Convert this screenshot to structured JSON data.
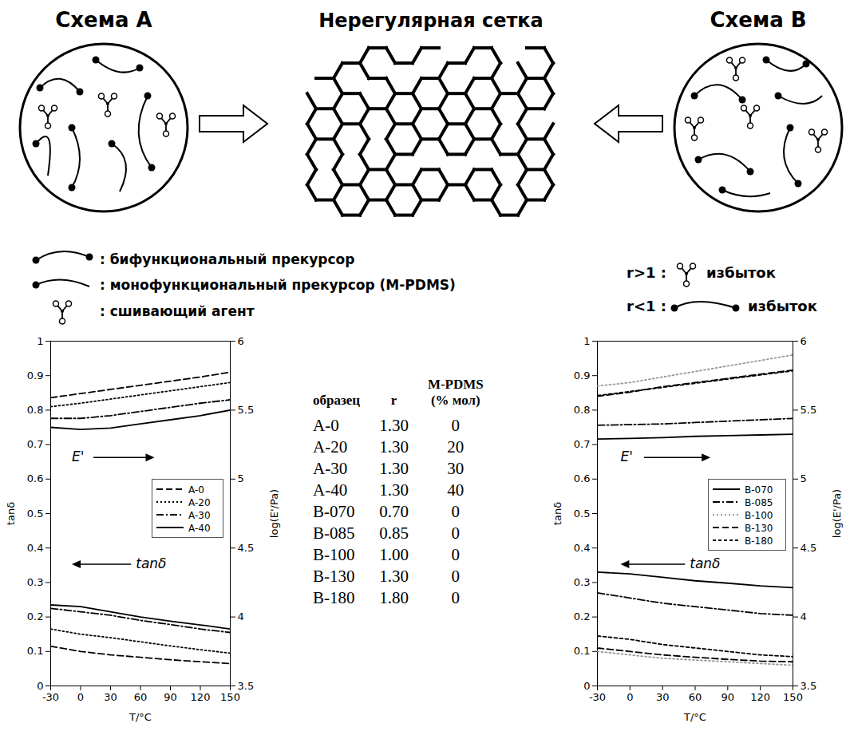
{
  "header": {
    "scheme_a": "Схема A",
    "network": "Нерегулярная сетка",
    "scheme_b": "Схема B"
  },
  "schematic_legend": {
    "bifunctional": ": бифункциональный прекурсор",
    "monofunctional": ": монофункциональный прекурсор (M-PDMS)",
    "crosslinker": ": сшивающий агент"
  },
  "ratio_notes": {
    "excess_crosslinker": {
      "condition": "r>1 :",
      "text": "избыток"
    },
    "excess_bifunctional": {
      "condition": "r<1 :",
      "text": "избыток"
    }
  },
  "table": {
    "columns": [
      "образец",
      "r",
      "M-PDMS (% мол)"
    ],
    "rows": [
      [
        "A-0",
        "1.30",
        "0"
      ],
      [
        "A-20",
        "1.30",
        "20"
      ],
      [
        "A-30",
        "1.30",
        "30"
      ],
      [
        "A-40",
        "1.30",
        "40"
      ],
      [
        "B-070",
        "0.70",
        "0"
      ],
      [
        "B-085",
        "0.85",
        "0"
      ],
      [
        "B-100",
        "1.00",
        "0"
      ],
      [
        "B-130",
        "1.30",
        "0"
      ],
      [
        "B-180",
        "1.80",
        "0"
      ]
    ]
  },
  "chart_data": [
    {
      "type": "line",
      "x_label": "T/°C",
      "y_label": "tanδ",
      "y2_label": "log(E'/Pa)",
      "x": [
        -30,
        0,
        30,
        60,
        90,
        120,
        150
      ],
      "xlim": [
        -30,
        150
      ],
      "xticks": [
        -30,
        0,
        30,
        60,
        90,
        120,
        150
      ],
      "ylim": [
        0,
        1
      ],
      "yticks": [
        0,
        0.1,
        0.2,
        0.3,
        0.4,
        0.5,
        0.6,
        0.7,
        0.8,
        0.9,
        1
      ],
      "y2lim": [
        3.5,
        6
      ],
      "y2ticks": [
        3.5,
        4,
        4.5,
        5,
        5.5,
        6
      ],
      "legend": "right",
      "annotations": [
        {
          "text": "E'",
          "axis": "y2"
        },
        {
          "text": "tanδ",
          "axis": "y"
        }
      ],
      "series": [
        {
          "name": "A-0",
          "color": "#000000",
          "line_style": "dashed",
          "values": [
            0.115,
            0.1,
            0.09,
            0.083,
            0.076,
            0.07,
            0.065
          ]
        },
        {
          "name": "A-20",
          "color": "#000000",
          "line_style": "dotted",
          "values": [
            0.165,
            0.15,
            0.14,
            0.128,
            0.116,
            0.105,
            0.095
          ]
        },
        {
          "name": "A-30",
          "color": "#000000",
          "line_style": "dashdot",
          "values": [
            0.225,
            0.215,
            0.205,
            0.19,
            0.178,
            0.165,
            0.155
          ]
        },
        {
          "name": "A-40",
          "color": "#000000",
          "line_style": "solid",
          "values": [
            0.235,
            0.23,
            0.215,
            0.2,
            0.188,
            0.177,
            0.165
          ]
        },
        {
          "name": "A-0",
          "color": "#000000",
          "line_style": "dashed",
          "axis": "y2",
          "values": [
            5.59,
            5.62,
            5.65,
            5.68,
            5.71,
            5.74,
            5.775
          ]
        },
        {
          "name": "A-20",
          "color": "#000000",
          "line_style": "dotted",
          "axis": "y2",
          "values": [
            5.525,
            5.55,
            5.58,
            5.61,
            5.64,
            5.67,
            5.7
          ]
        },
        {
          "name": "A-30",
          "color": "#000000",
          "line_style": "dashdot",
          "axis": "y2",
          "values": [
            5.44,
            5.44,
            5.46,
            5.49,
            5.52,
            5.55,
            5.575
          ]
        },
        {
          "name": "A-40",
          "color": "#000000",
          "line_style": "solid",
          "axis": "y2",
          "values": [
            5.375,
            5.36,
            5.37,
            5.4,
            5.43,
            5.46,
            5.5
          ]
        }
      ]
    },
    {
      "type": "line",
      "x_label": "T/°C",
      "y_label": "tanδ",
      "y2_label": "log(E'/Pa)",
      "x": [
        -30,
        0,
        30,
        60,
        90,
        120,
        150
      ],
      "xlim": [
        -30,
        150
      ],
      "xticks": [
        -30,
        0,
        30,
        60,
        90,
        120,
        150
      ],
      "ylim": [
        0,
        1
      ],
      "yticks": [
        0,
        0.1,
        0.2,
        0.3,
        0.4,
        0.5,
        0.6,
        0.7,
        0.8,
        0.9,
        1
      ],
      "y2lim": [
        3.5,
        6
      ],
      "y2ticks": [
        3.5,
        4,
        4.5,
        5,
        5.5,
        6
      ],
      "legend": "right",
      "annotations": [
        {
          "text": "E'",
          "axis": "y2"
        },
        {
          "text": "tanδ",
          "axis": "y"
        }
      ],
      "series": [
        {
          "name": "B-070",
          "color": "#000000",
          "line_style": "solid",
          "values": [
            0.33,
            0.325,
            0.315,
            0.305,
            0.298,
            0.29,
            0.285
          ]
        },
        {
          "name": "B-085",
          "color": "#000000",
          "line_style": "dashdot",
          "values": [
            0.27,
            0.255,
            0.24,
            0.23,
            0.22,
            0.21,
            0.205
          ]
        },
        {
          "name": "B-100",
          "color": "#999999",
          "line_style": "dotted",
          "values": [
            0.1,
            0.09,
            0.08,
            0.075,
            0.07,
            0.065,
            0.06
          ]
        },
        {
          "name": "B-130",
          "color": "#000000",
          "line_style": "dashed",
          "values": [
            0.11,
            0.1,
            0.09,
            0.083,
            0.077,
            0.072,
            0.07
          ]
        },
        {
          "name": "B-180",
          "color": "#000000",
          "line_style": "short_dashed",
          "values": [
            0.145,
            0.135,
            0.12,
            0.11,
            0.1,
            0.09,
            0.085
          ]
        },
        {
          "name": "B-070",
          "color": "#000000",
          "line_style": "solid",
          "axis": "y2",
          "values": [
            5.29,
            5.295,
            5.3,
            5.31,
            5.315,
            5.32,
            5.325
          ]
        },
        {
          "name": "B-085",
          "color": "#000000",
          "line_style": "dashdot",
          "axis": "y2",
          "values": [
            5.39,
            5.395,
            5.4,
            5.41,
            5.42,
            5.43,
            5.44
          ]
        },
        {
          "name": "B-100",
          "color": "#999999",
          "line_style": "dotted",
          "axis": "y2",
          "values": [
            5.675,
            5.7,
            5.74,
            5.78,
            5.82,
            5.86,
            5.9
          ]
        },
        {
          "name": "B-130",
          "color": "#000000",
          "line_style": "dashed",
          "axis": "y2",
          "values": [
            5.6,
            5.63,
            5.67,
            5.7,
            5.73,
            5.76,
            5.79
          ]
        },
        {
          "name": "B-180",
          "color": "#000000",
          "line_style": "short_dashed",
          "axis": "y2",
          "values": [
            5.605,
            5.635,
            5.665,
            5.695,
            5.725,
            5.755,
            5.785
          ]
        }
      ]
    }
  ]
}
